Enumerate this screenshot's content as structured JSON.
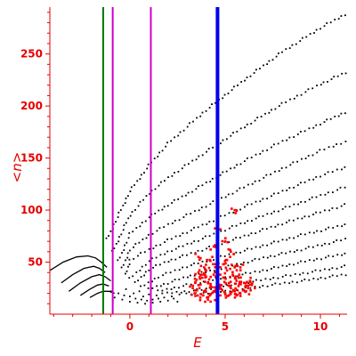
{
  "chart_data": {
    "type": "scatter",
    "title": "",
    "xlabel": "E",
    "ylabel": "<n>",
    "xlim": [
      -4.2,
      11.4
    ],
    "ylim": [
      0,
      295
    ],
    "x_ticks": [
      0,
      5,
      10
    ],
    "y_ticks": [
      50,
      100,
      150,
      200,
      250
    ],
    "axis_color": "#e60000",
    "grid": false,
    "legend": "none",
    "vertical_lines": [
      {
        "x": -1.4,
        "color": "#007700"
      },
      {
        "x": -0.9,
        "color": "#cc00cc"
      },
      {
        "x": 1.1,
        "color": "#cc00cc"
      },
      {
        "x": 4.6,
        "color": "#0000ee"
      }
    ],
    "series": [
      {
        "color": "#000000",
        "style": "dotted-curve",
        "points": [
          [
            -1.2,
            72
          ],
          [
            0,
            118
          ],
          [
            1,
            143
          ],
          [
            2,
            164
          ],
          [
            4,
            196
          ],
          [
            6,
            225
          ],
          [
            8,
            252
          ],
          [
            10,
            275
          ],
          [
            11.3,
            288
          ]
        ]
      },
      {
        "color": "#000000",
        "style": "dotted-curve",
        "points": [
          [
            -0.9,
            60
          ],
          [
            0,
            95
          ],
          [
            1,
            116
          ],
          [
            2,
            131
          ],
          [
            4,
            156
          ],
          [
            6,
            180
          ],
          [
            8,
            202
          ],
          [
            10,
            221
          ],
          [
            11.3,
            232
          ]
        ]
      },
      {
        "color": "#000000",
        "style": "dotted-curve",
        "points": [
          [
            -0.6,
            51
          ],
          [
            0,
            77
          ],
          [
            1,
            93
          ],
          [
            2,
            105
          ],
          [
            4,
            126
          ],
          [
            6,
            147
          ],
          [
            8,
            166
          ],
          [
            10,
            183
          ],
          [
            11.3,
            194
          ]
        ]
      },
      {
        "color": "#000000",
        "style": "dotted-curve",
        "points": [
          [
            -0.4,
            44
          ],
          [
            0,
            62
          ],
          [
            1,
            76
          ],
          [
            2,
            86
          ],
          [
            4,
            104
          ],
          [
            6,
            122
          ],
          [
            8,
            140
          ],
          [
            10,
            157
          ],
          [
            11.3,
            166
          ]
        ]
      },
      {
        "color": "#000000",
        "style": "dotted-curve",
        "points": [
          [
            -0.2,
            38
          ],
          [
            0,
            52
          ],
          [
            1,
            62
          ],
          [
            2,
            71
          ],
          [
            4,
            87
          ],
          [
            6,
            103
          ],
          [
            8,
            118
          ],
          [
            10,
            133
          ],
          [
            11.3,
            141
          ]
        ]
      },
      {
        "color": "#000000",
        "style": "dotted-curve",
        "points": [
          [
            0,
            34
          ],
          [
            1,
            51
          ],
          [
            2,
            60
          ],
          [
            4,
            74
          ],
          [
            6,
            88
          ],
          [
            8,
            101
          ],
          [
            10,
            114
          ],
          [
            11.3,
            122
          ]
        ]
      },
      {
        "color": "#000000",
        "style": "dotted-curve",
        "points": [
          [
            0.3,
            30
          ],
          [
            1,
            43
          ],
          [
            2,
            51
          ],
          [
            4,
            63
          ],
          [
            6,
            75
          ],
          [
            8,
            87
          ],
          [
            10,
            98
          ],
          [
            11.3,
            105
          ]
        ]
      },
      {
        "color": "#000000",
        "style": "dotted-curve",
        "points": [
          [
            0.6,
            26
          ],
          [
            1.5,
            36
          ],
          [
            3,
            46
          ],
          [
            5,
            56
          ],
          [
            7,
            66
          ],
          [
            9,
            76
          ],
          [
            11.3,
            86
          ]
        ]
      },
      {
        "color": "#000000",
        "style": "dotted-curve",
        "points": [
          [
            1,
            24
          ],
          [
            2,
            30
          ],
          [
            3,
            36
          ],
          [
            5,
            45
          ],
          [
            7,
            54
          ],
          [
            9,
            62
          ],
          [
            11.3,
            72
          ]
        ]
      },
      {
        "color": "#000000",
        "style": "dotted-curve",
        "points": [
          [
            1.5,
            22
          ],
          [
            3,
            28
          ],
          [
            5,
            35
          ],
          [
            7,
            42
          ],
          [
            9,
            50
          ],
          [
            11.3,
            58
          ]
        ]
      },
      {
        "color": "#000000",
        "style": "dotted-curve",
        "points": [
          [
            2,
            20
          ],
          [
            4,
            24
          ],
          [
            6,
            30
          ],
          [
            8,
            36
          ],
          [
            10,
            42
          ],
          [
            11.3,
            46
          ]
        ]
      },
      {
        "color": "#000000",
        "style": "dotted-curve",
        "points": [
          [
            3,
            19
          ],
          [
            5,
            22
          ],
          [
            7,
            27
          ],
          [
            9,
            32
          ],
          [
            11.3,
            38
          ]
        ]
      },
      {
        "color": "#000000",
        "style": "solid-curve",
        "points": [
          [
            -4.2,
            42
          ],
          [
            -3.5,
            50
          ],
          [
            -2.8,
            55
          ],
          [
            -2.2,
            56
          ],
          [
            -1.8,
            54
          ],
          [
            -1.5,
            50
          ],
          [
            -1.2,
            45
          ]
        ]
      },
      {
        "color": "#000000",
        "style": "solid-curve",
        "points": [
          [
            -3.6,
            30
          ],
          [
            -3,
            38
          ],
          [
            -2.4,
            44
          ],
          [
            -1.9,
            46
          ],
          [
            -1.6,
            44
          ],
          [
            -1.3,
            40
          ]
        ]
      },
      {
        "color": "#000000",
        "style": "solid-curve",
        "points": [
          [
            -3.2,
            22
          ],
          [
            -2.6,
            30
          ],
          [
            -2,
            36
          ],
          [
            -1.6,
            38
          ],
          [
            -1.3,
            36
          ],
          [
            -1,
            32
          ]
        ]
      },
      {
        "color": "#000000",
        "style": "solid-curve",
        "points": [
          [
            -2.6,
            18
          ],
          [
            -2.1,
            24
          ],
          [
            -1.7,
            28
          ],
          [
            -1.4,
            29
          ],
          [
            -1.1,
            27
          ]
        ]
      },
      {
        "color": "#000000",
        "style": "solid-curve",
        "points": [
          [
            -2.1,
            16
          ],
          [
            -1.7,
            20
          ],
          [
            -1.4,
            22
          ],
          [
            -1.1,
            22
          ],
          [
            -0.8,
            20
          ]
        ]
      },
      {
        "color": "#000000",
        "style": "scatter",
        "points": [
          [
            -1,
            22
          ],
          [
            -0.6,
            20
          ],
          [
            -0.3,
            18
          ],
          [
            0,
            17
          ],
          [
            0.3,
            15
          ],
          [
            0.6,
            14
          ],
          [
            0.9,
            13
          ],
          [
            1.2,
            14
          ],
          [
            1.5,
            15
          ],
          [
            1.8,
            16
          ],
          [
            -0.8,
            16
          ],
          [
            -0.4,
            14
          ],
          [
            0,
            12
          ],
          [
            0.4,
            11
          ],
          [
            0.8,
            10
          ],
          [
            1.2,
            11
          ],
          [
            1.6,
            12
          ],
          [
            2,
            13
          ],
          [
            2.3,
            15
          ],
          [
            -0.2,
            24
          ],
          [
            0.5,
            22
          ],
          [
            1,
            19
          ],
          [
            1.4,
            18
          ],
          [
            2.2,
            17
          ],
          [
            2.6,
            19
          ],
          [
            -0.9,
            13
          ],
          [
            0.2,
            20
          ],
          [
            0.7,
            17
          ],
          [
            1.7,
            20
          ],
          [
            2.5,
            12
          ]
        ]
      },
      {
        "color": "#ff0000",
        "style": "cluster",
        "points": [
          [
            3.4,
            20
          ],
          [
            3.6,
            28
          ],
          [
            3.8,
            35
          ],
          [
            3.9,
            22
          ],
          [
            4,
            42
          ],
          [
            4.1,
            30
          ],
          [
            4.2,
            18
          ],
          [
            4.3,
            26
          ],
          [
            4.4,
            38
          ],
          [
            4.5,
            48
          ],
          [
            3.7,
            16
          ],
          [
            4.1,
            14
          ],
          [
            3.5,
            33
          ],
          [
            3.9,
            45
          ],
          [
            4.2,
            52
          ],
          [
            4.4,
            22
          ],
          [
            4.6,
            16
          ],
          [
            3.3,
            25
          ],
          [
            3.6,
            40
          ],
          [
            4,
            36
          ],
          [
            4.8,
            28
          ],
          [
            4.9,
            35
          ],
          [
            5,
            20
          ],
          [
            5.1,
            42
          ],
          [
            5.2,
            30
          ],
          [
            5.3,
            25
          ],
          [
            5.4,
            38
          ],
          [
            5.5,
            22
          ],
          [
            5.6,
            32
          ],
          [
            5.7,
            27
          ],
          [
            5.8,
            20
          ],
          [
            6,
            30
          ],
          [
            6.2,
            25
          ],
          [
            6.4,
            28
          ],
          [
            5.1,
            52
          ],
          [
            5.3,
            60
          ],
          [
            5.5,
            45
          ],
          [
            5.6,
            18
          ],
          [
            4.9,
            48
          ],
          [
            5.7,
            35
          ],
          [
            6.1,
            22
          ],
          [
            5,
            70
          ],
          [
            4.4,
            65
          ],
          [
            3.6,
            55
          ],
          [
            5.5,
            100
          ],
          [
            4.6,
            80
          ],
          [
            5.8,
            45
          ],
          [
            4.8,
            24
          ],
          [
            5.2,
            18
          ],
          [
            6.3,
            32
          ]
        ]
      }
    ]
  }
}
